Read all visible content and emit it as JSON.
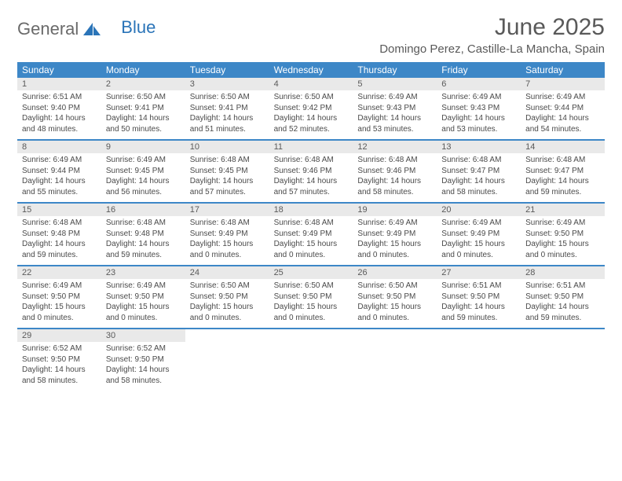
{
  "logo": {
    "part1": "General",
    "part2": "Blue"
  },
  "title": "June 2025",
  "location": "Domingo Perez, Castille-La Mancha, Spain",
  "daynames": [
    "Sunday",
    "Monday",
    "Tuesday",
    "Wednesday",
    "Thursday",
    "Friday",
    "Saturday"
  ],
  "colors": {
    "header_bar": "#3d87c7",
    "daynum_bg": "#e9e9e9",
    "text": "#4a4a4a",
    "logo_blue": "#2a74b8",
    "logo_gray": "#6a6a6a"
  },
  "weeks": [
    [
      {
        "num": "1",
        "sunrise": "Sunrise: 6:51 AM",
        "sunset": "Sunset: 9:40 PM",
        "day1": "Daylight: 14 hours",
        "day2": "and 48 minutes."
      },
      {
        "num": "2",
        "sunrise": "Sunrise: 6:50 AM",
        "sunset": "Sunset: 9:41 PM",
        "day1": "Daylight: 14 hours",
        "day2": "and 50 minutes."
      },
      {
        "num": "3",
        "sunrise": "Sunrise: 6:50 AM",
        "sunset": "Sunset: 9:41 PM",
        "day1": "Daylight: 14 hours",
        "day2": "and 51 minutes."
      },
      {
        "num": "4",
        "sunrise": "Sunrise: 6:50 AM",
        "sunset": "Sunset: 9:42 PM",
        "day1": "Daylight: 14 hours",
        "day2": "and 52 minutes."
      },
      {
        "num": "5",
        "sunrise": "Sunrise: 6:49 AM",
        "sunset": "Sunset: 9:43 PM",
        "day1": "Daylight: 14 hours",
        "day2": "and 53 minutes."
      },
      {
        "num": "6",
        "sunrise": "Sunrise: 6:49 AM",
        "sunset": "Sunset: 9:43 PM",
        "day1": "Daylight: 14 hours",
        "day2": "and 53 minutes."
      },
      {
        "num": "7",
        "sunrise": "Sunrise: 6:49 AM",
        "sunset": "Sunset: 9:44 PM",
        "day1": "Daylight: 14 hours",
        "day2": "and 54 minutes."
      }
    ],
    [
      {
        "num": "8",
        "sunrise": "Sunrise: 6:49 AM",
        "sunset": "Sunset: 9:44 PM",
        "day1": "Daylight: 14 hours",
        "day2": "and 55 minutes."
      },
      {
        "num": "9",
        "sunrise": "Sunrise: 6:49 AM",
        "sunset": "Sunset: 9:45 PM",
        "day1": "Daylight: 14 hours",
        "day2": "and 56 minutes."
      },
      {
        "num": "10",
        "sunrise": "Sunrise: 6:48 AM",
        "sunset": "Sunset: 9:45 PM",
        "day1": "Daylight: 14 hours",
        "day2": "and 57 minutes."
      },
      {
        "num": "11",
        "sunrise": "Sunrise: 6:48 AM",
        "sunset": "Sunset: 9:46 PM",
        "day1": "Daylight: 14 hours",
        "day2": "and 57 minutes."
      },
      {
        "num": "12",
        "sunrise": "Sunrise: 6:48 AM",
        "sunset": "Sunset: 9:46 PM",
        "day1": "Daylight: 14 hours",
        "day2": "and 58 minutes."
      },
      {
        "num": "13",
        "sunrise": "Sunrise: 6:48 AM",
        "sunset": "Sunset: 9:47 PM",
        "day1": "Daylight: 14 hours",
        "day2": "and 58 minutes."
      },
      {
        "num": "14",
        "sunrise": "Sunrise: 6:48 AM",
        "sunset": "Sunset: 9:47 PM",
        "day1": "Daylight: 14 hours",
        "day2": "and 59 minutes."
      }
    ],
    [
      {
        "num": "15",
        "sunrise": "Sunrise: 6:48 AM",
        "sunset": "Sunset: 9:48 PM",
        "day1": "Daylight: 14 hours",
        "day2": "and 59 minutes."
      },
      {
        "num": "16",
        "sunrise": "Sunrise: 6:48 AM",
        "sunset": "Sunset: 9:48 PM",
        "day1": "Daylight: 14 hours",
        "day2": "and 59 minutes."
      },
      {
        "num": "17",
        "sunrise": "Sunrise: 6:48 AM",
        "sunset": "Sunset: 9:49 PM",
        "day1": "Daylight: 15 hours",
        "day2": "and 0 minutes."
      },
      {
        "num": "18",
        "sunrise": "Sunrise: 6:48 AM",
        "sunset": "Sunset: 9:49 PM",
        "day1": "Daylight: 15 hours",
        "day2": "and 0 minutes."
      },
      {
        "num": "19",
        "sunrise": "Sunrise: 6:49 AM",
        "sunset": "Sunset: 9:49 PM",
        "day1": "Daylight: 15 hours",
        "day2": "and 0 minutes."
      },
      {
        "num": "20",
        "sunrise": "Sunrise: 6:49 AM",
        "sunset": "Sunset: 9:49 PM",
        "day1": "Daylight: 15 hours",
        "day2": "and 0 minutes."
      },
      {
        "num": "21",
        "sunrise": "Sunrise: 6:49 AM",
        "sunset": "Sunset: 9:50 PM",
        "day1": "Daylight: 15 hours",
        "day2": "and 0 minutes."
      }
    ],
    [
      {
        "num": "22",
        "sunrise": "Sunrise: 6:49 AM",
        "sunset": "Sunset: 9:50 PM",
        "day1": "Daylight: 15 hours",
        "day2": "and 0 minutes."
      },
      {
        "num": "23",
        "sunrise": "Sunrise: 6:49 AM",
        "sunset": "Sunset: 9:50 PM",
        "day1": "Daylight: 15 hours",
        "day2": "and 0 minutes."
      },
      {
        "num": "24",
        "sunrise": "Sunrise: 6:50 AM",
        "sunset": "Sunset: 9:50 PM",
        "day1": "Daylight: 15 hours",
        "day2": "and 0 minutes."
      },
      {
        "num": "25",
        "sunrise": "Sunrise: 6:50 AM",
        "sunset": "Sunset: 9:50 PM",
        "day1": "Daylight: 15 hours",
        "day2": "and 0 minutes."
      },
      {
        "num": "26",
        "sunrise": "Sunrise: 6:50 AM",
        "sunset": "Sunset: 9:50 PM",
        "day1": "Daylight: 15 hours",
        "day2": "and 0 minutes."
      },
      {
        "num": "27",
        "sunrise": "Sunrise: 6:51 AM",
        "sunset": "Sunset: 9:50 PM",
        "day1": "Daylight: 14 hours",
        "day2": "and 59 minutes."
      },
      {
        "num": "28",
        "sunrise": "Sunrise: 6:51 AM",
        "sunset": "Sunset: 9:50 PM",
        "day1": "Daylight: 14 hours",
        "day2": "and 59 minutes."
      }
    ],
    [
      {
        "num": "29",
        "sunrise": "Sunrise: 6:52 AM",
        "sunset": "Sunset: 9:50 PM",
        "day1": "Daylight: 14 hours",
        "day2": "and 58 minutes."
      },
      {
        "num": "30",
        "sunrise": "Sunrise: 6:52 AM",
        "sunset": "Sunset: 9:50 PM",
        "day1": "Daylight: 14 hours",
        "day2": "and 58 minutes."
      },
      {
        "empty": true
      },
      {
        "empty": true
      },
      {
        "empty": true
      },
      {
        "empty": true
      },
      {
        "empty": true
      }
    ]
  ]
}
